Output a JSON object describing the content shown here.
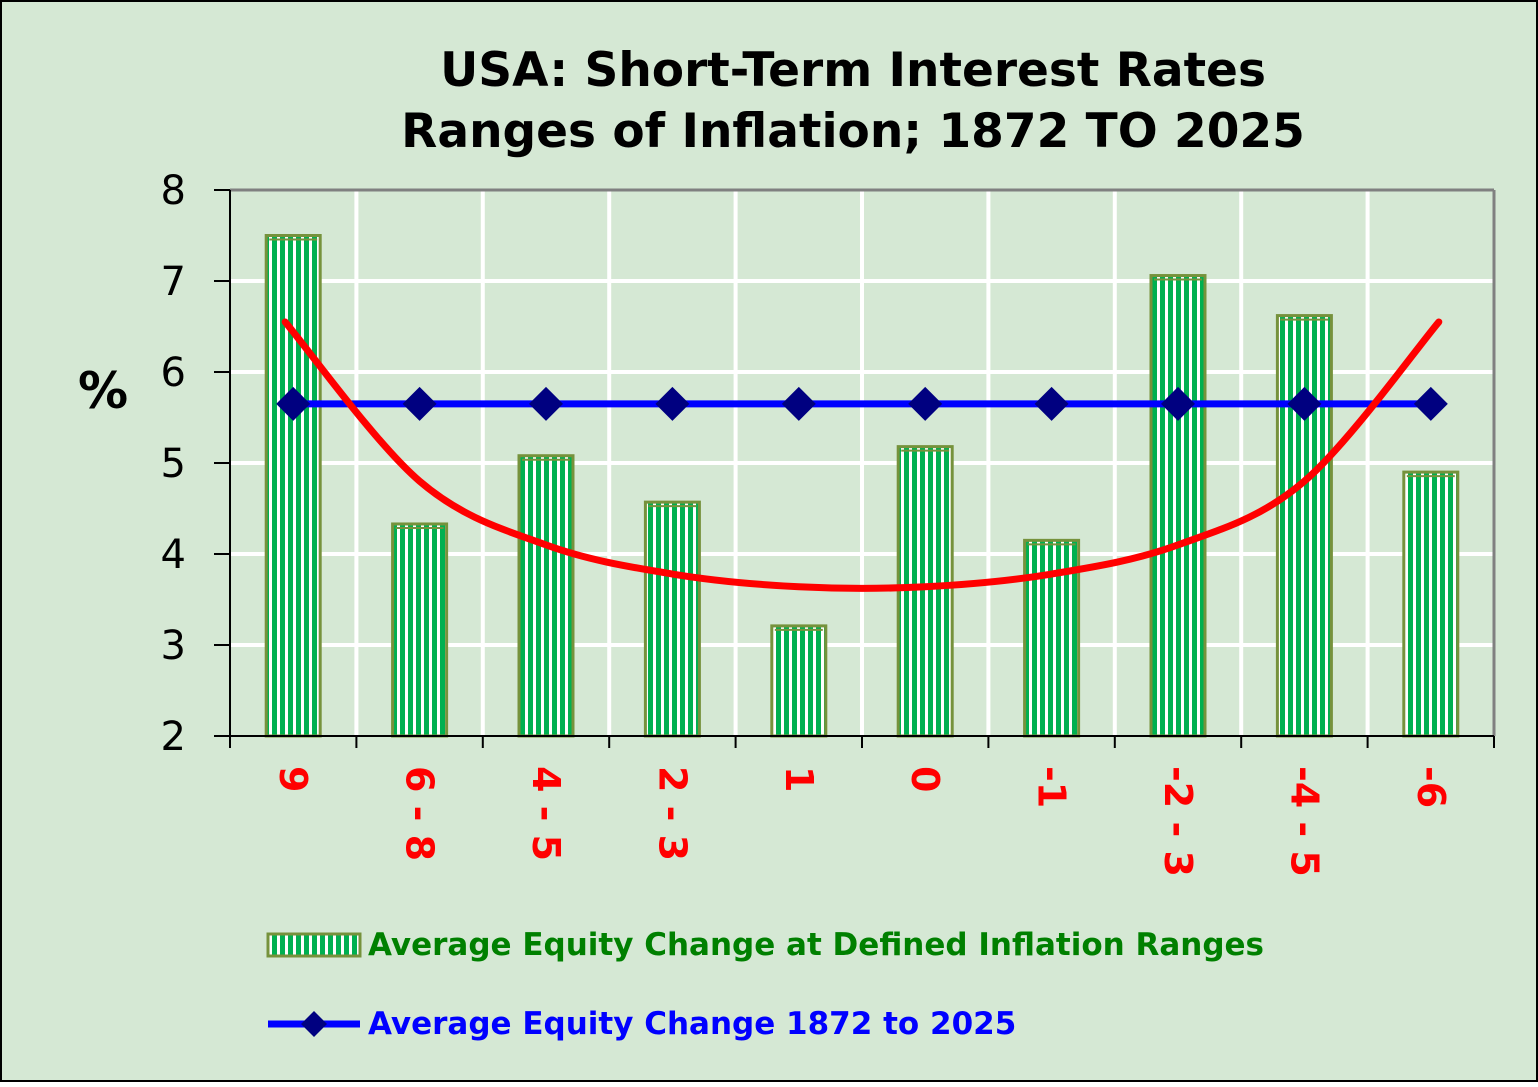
{
  "chart_data": {
    "type": "bar",
    "title": [
      "USA: Short-Term Interest Rates",
      "Ranges of Inflation;  1872 TO 2025"
    ],
    "ylabel": "%",
    "xlabel": "",
    "ylim": [
      2,
      8
    ],
    "yticks": [
      "2",
      "3",
      "4",
      "5",
      "6",
      "7",
      "8"
    ],
    "grid": true,
    "categories": [
      "9",
      "6 - 8",
      "4 - 5",
      "2 - 3",
      "1",
      "0",
      "-1",
      "-2 - 3",
      "-4 - 5",
      "-6"
    ],
    "series": [
      {
        "name": "Average Equity Change at Defined Inflation Ranges",
        "type": "bar",
        "values": [
          7.5,
          4.33,
          5.08,
          4.57,
          3.21,
          5.18,
          4.15,
          7.06,
          6.62,
          4.9
        ]
      },
      {
        "name": "Average Equity Change 1872 to 2025",
        "type": "line",
        "marker": "diamond",
        "values": [
          5.65,
          5.65,
          5.65,
          5.65,
          5.65,
          5.65,
          5.65,
          5.65,
          5.65,
          5.65
        ]
      }
    ],
    "trend_curve": {
      "type": "u-shaped curve",
      "color": "#ff0000",
      "values": [
        6.55,
        4.8,
        4.1,
        3.78,
        3.64,
        3.64,
        3.78,
        4.1,
        4.8,
        6.55
      ]
    },
    "legend_placement": "bottom",
    "colors": {
      "background": "#d5e8d4",
      "plot_background": "#d5e8d4",
      "bar_fill": "#00b050",
      "bar_stripe": "#ffffff",
      "bar_border": "#76923c",
      "avg_line": "#0000ff",
      "avg_marker": "#000080",
      "trend": "#ff0000",
      "tick_label": "#ff0000",
      "legend_bar_text": "#008000",
      "legend_line_text": "#0000ff",
      "grid": "#ffffff"
    }
  }
}
